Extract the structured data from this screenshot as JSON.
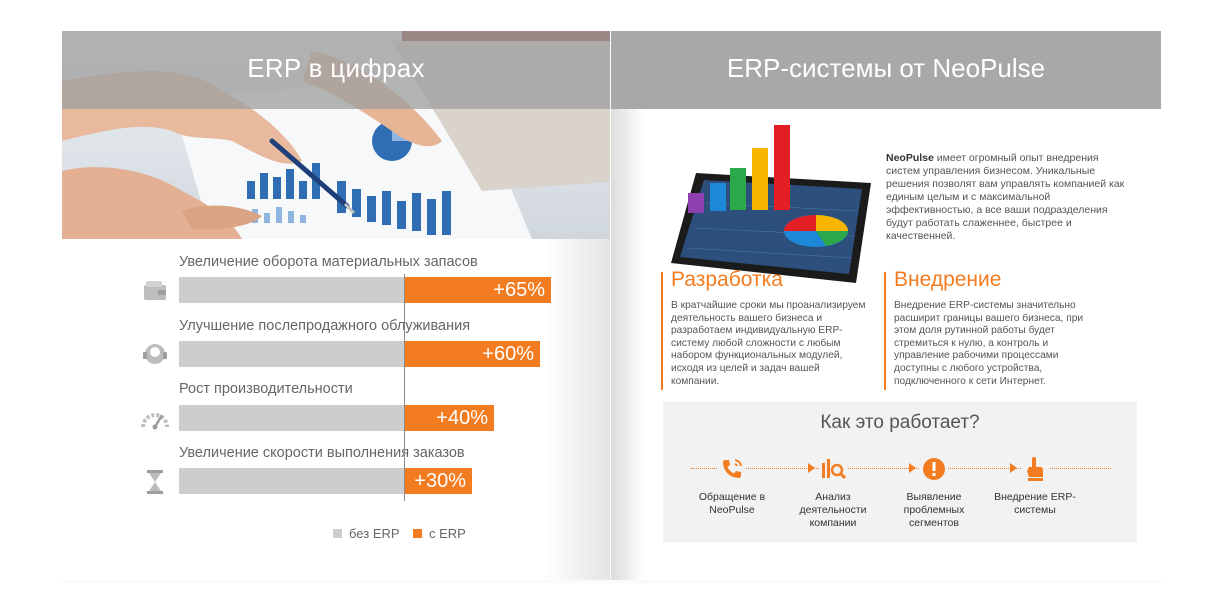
{
  "left_page": {
    "title": "ERP в цифрах",
    "metrics": [
      {
        "label": "Увеличение оборота материальных запасов",
        "value": "+65%",
        "percent": 65,
        "icon": "wallet-icon"
      },
      {
        "label": "Улучшение послепродажного облуживания",
        "value": "+60%",
        "percent": 60,
        "icon": "headset-icon"
      },
      {
        "label": "Рост производительности",
        "value": "+40%",
        "percent": 40,
        "icon": "speedometer-icon"
      },
      {
        "label": "Увеличение скорости выполнения заказов",
        "value": "+30%",
        "percent": 30,
        "icon": "hourglass-icon"
      }
    ],
    "legend": {
      "without": "без ERP",
      "with": "с ERP"
    }
  },
  "right_page": {
    "title": "ERP-системы от NeoPulse",
    "intro_brand": "NeoPulse",
    "intro_text": " имеет огромный опыт внедрения систем управления бизнесом. Уникальные решения позволят вам управлять компанией как единым целым и с максимальной эффективностью, а все ваши подразделения будут работать слаженнее, быстрее и качественней.",
    "columns": [
      {
        "title": "Разработка",
        "text": "В кратчайшие сроки мы проанализируем деятельность вашего бизнеса и разработаем индивидуальную ERP-систему любой сложности с любым набором функциональных модулей, исходя из целей и задач вашей компании."
      },
      {
        "title": "Внедрение",
        "text": "Внедрение ERP-системы значительно расширит границы вашего бизнеса, при этом доля рутинной работы будет стремиться к нулю, а контроль и управление рабочими процессами доступны с любого устройства, подключенного к сети Интернет."
      }
    ],
    "how": {
      "title": "Как это работает?",
      "steps": [
        {
          "label": "Обращение в NeoPulse",
          "icon": "phone-icon"
        },
        {
          "label": "Анализ деятельности компании",
          "icon": "analysis-icon"
        },
        {
          "label": "Выявление проблемных сегментов",
          "icon": "warning-icon"
        },
        {
          "label": "Внедрение ERP-системы",
          "icon": "touch-icon"
        }
      ]
    }
  },
  "colors": {
    "accent": "#f47c20",
    "bar_gray": "#cdcdcd",
    "header_gray": "#a8a8a8"
  }
}
